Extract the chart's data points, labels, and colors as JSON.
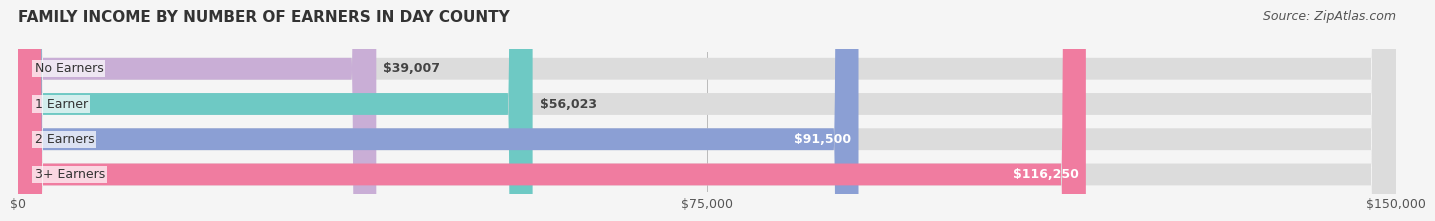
{
  "title": "FAMILY INCOME BY NUMBER OF EARNERS IN DAY COUNTY",
  "source": "Source: ZipAtlas.com",
  "categories": [
    "No Earners",
    "1 Earner",
    "2 Earners",
    "3+ Earners"
  ],
  "values": [
    39007,
    56023,
    91500,
    116250
  ],
  "labels": [
    "$39,007",
    "$56,023",
    "$91,500",
    "$116,250"
  ],
  "bar_colors": [
    "#c9aed6",
    "#6ec9c4",
    "#8b9fd4",
    "#f07ca0"
  ],
  "bar_bg_color": "#e8e8e8",
  "xlim": [
    0,
    150000
  ],
  "xticks": [
    0,
    75000,
    150000
  ],
  "xtick_labels": [
    "$0",
    "$75,000",
    "$150,000"
  ],
  "title_fontsize": 11,
  "source_fontsize": 9,
  "label_fontsize": 9,
  "category_fontsize": 9,
  "bar_height": 0.62,
  "fig_bg_color": "#f5f5f5",
  "bar_bg_rounding": 0.05
}
